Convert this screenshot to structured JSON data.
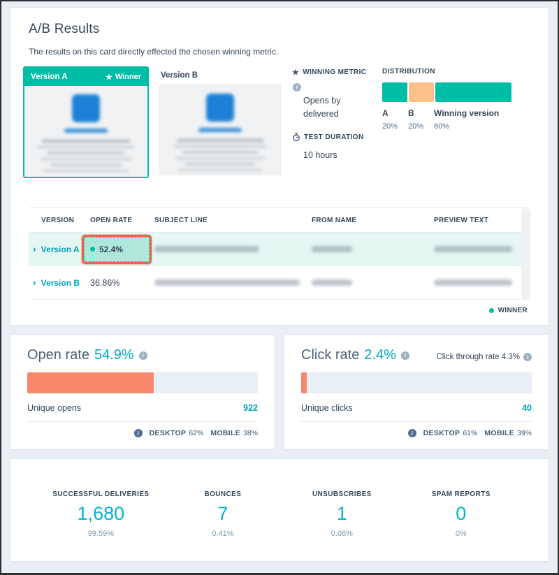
{
  "colors": {
    "teal": "#00bda5",
    "peach": "#fbc189",
    "coral": "#f8876c",
    "cyan_link": "#00a4bd",
    "navy": "#33475b",
    "annotation_orange": "#e8674a",
    "row_highlight": "#e6f6f2",
    "cell_highlight": "#ade8da"
  },
  "ab_card": {
    "title": "A/B Results",
    "subtitle": "The results on this card directly effected the chosen winning metric.",
    "version_a": {
      "label": "Version A",
      "winner_badge": "Winner"
    },
    "version_b": {
      "label": "Version B"
    },
    "winning_metric": {
      "label": "WINNING METRIC",
      "value": "Opens by delivered"
    },
    "test_duration": {
      "label": "TEST DURATION",
      "value": "10 hours"
    },
    "distribution": {
      "label": "DISTRIBUTION",
      "segments": [
        {
          "name": "A",
          "pct": "20%",
          "value": 20,
          "color": "#00bda5"
        },
        {
          "name": "B",
          "pct": "20%",
          "value": 20,
          "color": "#fbc189"
        },
        {
          "name": "Winning version",
          "pct": "60%",
          "value": 60,
          "color": "#00bda5"
        }
      ]
    },
    "table": {
      "columns": [
        "VERSION",
        "OPEN RATE",
        "SUBJECT LINE",
        "FROM NAME",
        "PREVIEW TEXT"
      ],
      "rows": [
        {
          "version": "Version A",
          "open_rate": "52.4%",
          "winner": true,
          "highlighted": true,
          "annotated": true,
          "subject_redacted": true,
          "from_redacted": true,
          "preview_redacted": true
        },
        {
          "version": "Version B",
          "open_rate": "36.86%",
          "winner": false,
          "subject_redacted": true,
          "from_redacted": true,
          "preview_redacted": true
        }
      ],
      "legend": "WINNER"
    }
  },
  "open_rate_card": {
    "title": "Open rate",
    "value": "54.9%",
    "bar_pct": 54.9,
    "row_label": "Unique opens",
    "row_value": "922",
    "footer": {
      "desktop_label": "DESKTOP",
      "desktop_value": "62%",
      "mobile_label": "MOBILE",
      "mobile_value": "38%"
    }
  },
  "click_rate_card": {
    "title": "Click rate",
    "value": "2.4%",
    "secondary": "Click through rate 4.3%",
    "bar_pct": 2.4,
    "row_label": "Unique clicks",
    "row_value": "40",
    "footer": {
      "desktop_label": "DESKTOP",
      "desktop_value": "61%",
      "mobile_label": "MOBILE",
      "mobile_value": "39%"
    }
  },
  "totals_card": {
    "stats": [
      {
        "label": "SUCCESSFUL DELIVERIES",
        "value": "1,680",
        "pct": "99.59%"
      },
      {
        "label": "BOUNCES",
        "value": "7",
        "pct": "0.41%"
      },
      {
        "label": "UNSUBSCRIBES",
        "value": "1",
        "pct": "0.06%"
      },
      {
        "label": "SPAM REPORTS",
        "value": "0",
        "pct": "0%"
      }
    ]
  }
}
